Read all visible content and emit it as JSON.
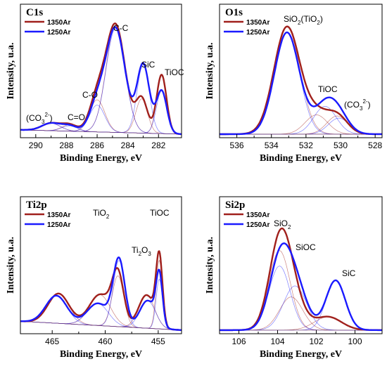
{
  "panels": [
    {
      "title": "C1s",
      "legend": [
        {
          "label": "1350Ar",
          "color": "#a0201c"
        },
        {
          "label": "1250Ar",
          "color": "#1a1aff"
        }
      ],
      "xlabel": "Binding Energy, eV",
      "ylabel": "Intensity, u.a.",
      "peak_labels": [
        {
          "text": "C-C",
          "sub": "",
          "sup": "",
          "suffix": ""
        },
        {
          "text": "SiC",
          "sub": "",
          "sup": "",
          "suffix": ""
        },
        {
          "text": "TiOC",
          "sub": "",
          "sup": "",
          "suffix": ""
        },
        {
          "text": "C-O",
          "sub": "",
          "sup": "",
          "suffix": ""
        },
        {
          "text": "C=O",
          "sub": "",
          "sup": "",
          "suffix": ""
        },
        {
          "text": "(CO",
          "sub": "3",
          "sup": "2-",
          "suffix": ")"
        }
      ]
    },
    {
      "title": "O1s",
      "legend": [
        {
          "label": "1350Ar",
          "color": "#a0201c"
        },
        {
          "label": "1250Ar",
          "color": "#1a1aff"
        }
      ],
      "xlabel": "Binding Energy, eV",
      "ylabel": "Intensity, u.a.",
      "peak_labels": [
        {
          "text": "SiO",
          "sub": "2",
          "sup": "",
          "suffix": "(TiO",
          "sub2": "2",
          "suffix2": ")"
        },
        {
          "text": "TiOC",
          "sub": "",
          "sup": "",
          "suffix": ""
        },
        {
          "text": "(CO",
          "sub": "3",
          "sup": "2-",
          "suffix": ")"
        }
      ]
    },
    {
      "title": "Ti2p",
      "legend": [
        {
          "label": "1350Ar",
          "color": "#a0201c"
        },
        {
          "label": "1250Ar",
          "color": "#1a1aff"
        }
      ],
      "xlabel": "Binding Energy, eV",
      "ylabel": "Intensity, u.a.",
      "peak_labels": [
        {
          "text": "TiO",
          "sub": "2",
          "sup": "",
          "suffix": ""
        },
        {
          "text": "TiOC",
          "sub": "",
          "sup": "",
          "suffix": ""
        },
        {
          "text": "Ti",
          "sub": "2",
          "sup": "",
          "suffix": "O",
          "sub2": "3",
          "suffix2": ""
        }
      ]
    },
    {
      "title": "Si2p",
      "legend": [
        {
          "label": "1350Ar",
          "color": "#a0201c"
        },
        {
          "label": "1250Ar",
          "color": "#1a1aff"
        }
      ],
      "xlabel": "Binding Energy, eV",
      "ylabel": "Intensity, u.a.",
      "peak_labels": [
        {
          "text": "SiO",
          "sub": "2",
          "sup": "",
          "suffix": ""
        },
        {
          "text": "SiOC",
          "sub": "",
          "sup": "",
          "suffix": ""
        },
        {
          "text": "SiC",
          "sub": "",
          "sup": "",
          "suffix": ""
        }
      ]
    }
  ],
  "chart_data": [
    {
      "type": "line",
      "title": "C1s",
      "xlabel": "Binding Energy, eV",
      "ylabel": "Intensity, u.a.",
      "xlim": [
        291,
        280.5
      ],
      "x_reversed": true,
      "xticks": [
        290,
        288,
        286,
        284,
        282
      ],
      "ylim": [
        0,
        1.05
      ],
      "baseline": [
        [
          291,
          0.06
        ],
        [
          280.5,
          0.02
        ]
      ],
      "series": [
        {
          "name": "1350Ar",
          "color": "#a0201c",
          "peaks": [
            [
              284.8,
              1.0,
              0.62
            ],
            [
              283.1,
              0.32,
              0.38
            ],
            [
              281.8,
              0.55,
              0.32
            ],
            [
              286.0,
              0.3,
              0.5
            ],
            [
              287.8,
              0.06,
              0.5
            ],
            [
              289.0,
              0.07,
              0.6
            ]
          ]
        },
        {
          "name": "1250Ar",
          "color": "#1a1aff",
          "peaks": [
            [
              284.8,
              0.97,
              0.62
            ],
            [
              283.0,
              0.64,
              0.4
            ],
            [
              281.8,
              0.4,
              0.34
            ],
            [
              286.0,
              0.25,
              0.5
            ],
            [
              287.8,
              0.05,
              0.5
            ],
            [
              289.0,
              0.07,
              0.6
            ]
          ]
        }
      ]
    },
    {
      "type": "line",
      "title": "O1s",
      "xlabel": "Binding Energy, eV",
      "ylabel": "Intensity, u.a.",
      "xlim": [
        537,
        527.6
      ],
      "x_reversed": true,
      "xticks": [
        536,
        534,
        532,
        530,
        528
      ],
      "ylim": [
        0,
        1.05
      ],
      "baseline": [
        [
          537,
          0.02
        ],
        [
          527.6,
          0.02
        ]
      ],
      "series": [
        {
          "name": "1350Ar",
          "color": "#a0201c",
          "peaks": [
            [
              533.1,
              1.0,
              0.75
            ],
            [
              531.4,
              0.18,
              0.65
            ],
            [
              530.2,
              0.17,
              0.6
            ]
          ]
        },
        {
          "name": "1250Ar",
          "color": "#1a1aff",
          "peaks": [
            [
              533.1,
              0.95,
              0.72
            ],
            [
              530.9,
              0.26,
              0.65
            ],
            [
              530.1,
              0.15,
              0.6
            ]
          ]
        }
      ]
    },
    {
      "type": "line",
      "title": "Ti2p",
      "xlabel": "Binding Energy, eV",
      "ylabel": "Intensity, u.a.",
      "xlim": [
        468,
        452.8
      ],
      "x_reversed": true,
      "xticks": [
        465,
        460,
        455
      ],
      "ylim": [
        0,
        1.05
      ],
      "baseline": [
        [
          468,
          0.1
        ],
        [
          452.8,
          0.02
        ]
      ],
      "series": [
        {
          "name": "1350Ar",
          "color": "#a0201c",
          "peaks": [
            [
              464.4,
              0.27,
              1.0
            ],
            [
              460.5,
              0.28,
              1.0
            ],
            [
              458.8,
              0.46,
              0.55
            ],
            [
              456.1,
              0.3,
              0.75
            ],
            [
              454.9,
              0.62,
              0.3
            ]
          ]
        },
        {
          "name": "1250Ar",
          "color": "#1a1aff",
          "peaks": [
            [
              464.6,
              0.25,
              1.0
            ],
            [
              460.7,
              0.2,
              1.0
            ],
            [
              458.7,
              0.6,
              0.55
            ],
            [
              456.0,
              0.25,
              0.75
            ],
            [
              454.9,
              0.45,
              0.3
            ]
          ]
        }
      ]
    },
    {
      "type": "line",
      "title": "Si2p",
      "xlabel": "Binding Energy, eV",
      "ylabel": "Intensity, u.a.",
      "xlim": [
        107,
        98.6
      ],
      "x_reversed": true,
      "xticks": [
        106,
        104,
        102,
        100
      ],
      "ylim": [
        0,
        1.05
      ],
      "baseline": [
        [
          107,
          0.02
        ],
        [
          98.6,
          0.02
        ]
      ],
      "series": [
        {
          "name": "1350Ar",
          "color": "#a0201c",
          "peaks": [
            [
              103.9,
              0.72,
              0.55
            ],
            [
              103.3,
              0.3,
              0.6
            ],
            [
              101.4,
              0.12,
              0.7
            ]
          ]
        },
        {
          "name": "1250Ar",
          "color": "#1a1aff",
          "peaks": [
            [
              103.9,
              0.58,
              0.55
            ],
            [
              103.1,
              0.4,
              0.6
            ],
            [
              101.0,
              0.45,
              0.5
            ]
          ]
        }
      ]
    }
  ]
}
